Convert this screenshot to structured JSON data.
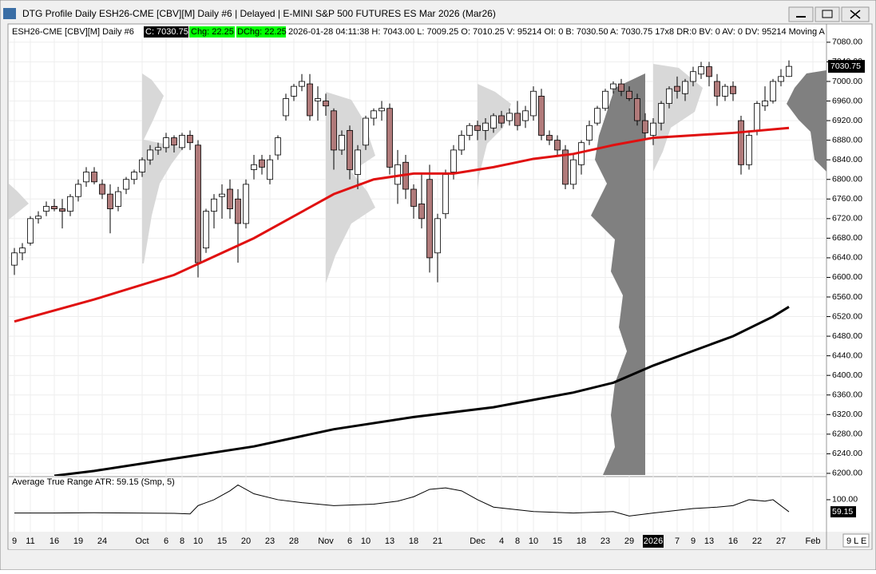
{
  "window": {
    "title": "DTG Profile Daily ESH26-CME [CBV][M]  Daily #6 | Delayed | E-MINI S&P 500 FUTURES ES Mar 2026 (Mar26)"
  },
  "info": {
    "symbol": "ESH26-CME [CBV][M]  Daily #6",
    "close": "C: 7030.75",
    "change": "Chg: 22.25",
    "dchange": "DChg: 22.25",
    "details": "2026-01-28 04:11:38 H: 7043.00 L: 7009.25 O: 7010.25 V: 95214 OI: 0 B: 7030.50 A: 7030.75 17x8 DR:0 BV: 0 AV: 0 DV: 95214 Moving A"
  },
  "corner": "9 L E",
  "chart_data": {
    "type": "candlestick",
    "categories": [
      "9",
      null,
      "11",
      null,
      null,
      "16",
      null,
      null,
      "19",
      null,
      null,
      "24",
      null,
      null,
      null,
      null,
      "Oct",
      null,
      null,
      "6",
      null,
      "8",
      null,
      "10",
      null,
      null,
      "15",
      null,
      null,
      "20",
      null,
      null,
      "23",
      null,
      null,
      "28",
      null,
      null,
      null,
      "Nov",
      null,
      null,
      "6",
      null,
      "10",
      null,
      null,
      "13",
      null,
      null,
      "18",
      null,
      null,
      "21",
      null,
      null,
      null,
      null,
      "Dec",
      null,
      null,
      "4",
      null,
      "8",
      null,
      "10",
      null,
      null,
      "15",
      null,
      null,
      "18",
      null,
      null,
      "23",
      null,
      null,
      "29",
      null,
      null,
      "2026",
      null,
      null,
      "7",
      null,
      "9",
      null,
      "13",
      null,
      null,
      "16",
      null,
      null,
      "22",
      null,
      null,
      "27",
      null,
      null,
      null,
      "Feb"
    ],
    "open": [
      6625,
      6650,
      6670,
      6720,
      6735,
      6745,
      6740,
      6735,
      6765,
      6795,
      6815,
      6790,
      6770,
      6745,
      6780,
      6800,
      6815,
      6840,
      6860,
      6865,
      6885,
      6865,
      6890,
      6870,
      6660,
      6735,
      6765,
      6780,
      6760,
      6710,
      6820,
      6840,
      6800,
      6850,
      6930,
      6970,
      6990,
      6995,
      6960,
      6960,
      6940,
      6860,
      6900,
      6810,
      6870,
      6925,
      6940,
      6945,
      6790,
      6835,
      6780,
      6750,
      6800,
      6650,
      6730,
      6815,
      6860,
      6890,
      6910,
      6900,
      6905,
      6930,
      6920,
      6935,
      6920,
      6930,
      6970,
      6890,
      6880,
      6860,
      6790,
      6830,
      6880,
      6915,
      6945,
      6985,
      6995,
      6980,
      6965,
      6920,
      6890,
      6915,
      6955,
      6990,
      6975,
      7000,
      7015,
      7030,
      7000,
      6970,
      6990,
      6920,
      6830,
      6900,
      6950,
      6960,
      7000,
      7010.25,
      null,
      null,
      null
    ],
    "high": [
      6660,
      6670,
      6725,
      6735,
      6755,
      6760,
      6760,
      6770,
      6800,
      6825,
      6825,
      6800,
      6790,
      6785,
      6805,
      6820,
      6845,
      6870,
      6875,
      6895,
      6890,
      6895,
      6900,
      6880,
      6740,
      6770,
      6790,
      6800,
      6780,
      6800,
      6850,
      6850,
      6850,
      6890,
      6975,
      6995,
      7015,
      7015,
      6990,
      6975,
      6945,
      6900,
      6910,
      6870,
      6930,
      6945,
      6960,
      6955,
      6860,
      6850,
      6790,
      6810,
      6830,
      6730,
      6820,
      6870,
      6900,
      6915,
      6920,
      6925,
      6935,
      6940,
      6945,
      6960,
      6950,
      6990,
      6985,
      6900,
      6890,
      6870,
      6850,
      6880,
      6920,
      6950,
      6985,
      7000,
      7005,
      6990,
      6975,
      6935,
      6925,
      6960,
      6990,
      7010,
      7005,
      7030,
      7040,
      7040,
      7015,
      6995,
      7000,
      6930,
      6900,
      6960,
      6990,
      7005,
      7025,
      7043,
      null,
      null,
      null
    ],
    "low": [
      6605,
      6635,
      6665,
      6710,
      6725,
      6735,
      6700,
      6725,
      6755,
      6785,
      6790,
      6760,
      6690,
      6735,
      6770,
      6790,
      6805,
      6830,
      6850,
      6855,
      6855,
      6860,
      6860,
      6600,
      6650,
      6700,
      6720,
      6720,
      6630,
      6700,
      6800,
      6810,
      6790,
      6840,
      6920,
      6960,
      6980,
      6920,
      6920,
      6930,
      6820,
      6850,
      6800,
      6780,
      6860,
      6910,
      6920,
      6810,
      6750,
      6760,
      6720,
      6700,
      6610,
      6590,
      6720,
      6800,
      6850,
      6880,
      6880,
      6880,
      6895,
      6905,
      6910,
      6900,
      6905,
      6920,
      6880,
      6870,
      6850,
      6780,
      6780,
      6810,
      6870,
      6910,
      6940,
      6975,
      6970,
      6960,
      6910,
      6880,
      6870,
      6900,
      6945,
      6965,
      6960,
      6990,
      7005,
      6990,
      6950,
      6960,
      6960,
      6810,
      6820,
      6890,
      6940,
      6955,
      6990,
      7009.25,
      null,
      null,
      null
    ],
    "close": [
      6650,
      6660,
      6720,
      6725,
      6745,
      6740,
      6735,
      6765,
      6790,
      6815,
      6795,
      6770,
      6740,
      6775,
      6800,
      6815,
      6840,
      6860,
      6865,
      6885,
      6870,
      6890,
      6875,
      6630,
      6735,
      6760,
      6770,
      6740,
      6710,
      6790,
      6830,
      6825,
      6840,
      6885,
      6965,
      6990,
      7000,
      6930,
      6965,
      6950,
      6860,
      6890,
      6820,
      6860,
      6925,
      6940,
      6945,
      6825,
      6830,
      6780,
      6745,
      6720,
      6640,
      6720,
      6810,
      6860,
      6890,
      6910,
      6900,
      6915,
      6930,
      6915,
      6935,
      6910,
      6940,
      6980,
      6890,
      6880,
      6860,
      6790,
      6840,
      6875,
      6910,
      6945,
      6980,
      6995,
      6980,
      6965,
      6920,
      6895,
      6915,
      6955,
      6985,
      6980,
      7000,
      7020,
      7030,
      7010,
      6970,
      6990,
      6975,
      6830,
      6890,
      6955,
      6960,
      7000,
      7010,
      7030.75,
      null,
      null,
      null
    ],
    "up_color": "#ffffff",
    "down_color": "#b07a7a",
    "ylim": [
      6195,
      7088
    ],
    "yticks": [
      {
        "value": 7080,
        "label": "7080.00"
      },
      {
        "value": 7040,
        "label": "7040.00"
      },
      {
        "value": 7000,
        "label": "7000.00"
      },
      {
        "value": 6960,
        "label": "6960.00"
      },
      {
        "value": 6920,
        "label": "6920.00"
      },
      {
        "value": 6880,
        "label": "6880.00"
      },
      {
        "value": 6840,
        "label": "6840.00"
      },
      {
        "value": 6800,
        "label": "6800.00"
      },
      {
        "value": 6760,
        "label": "6760.00"
      },
      {
        "value": 6720,
        "label": "6720.00"
      },
      {
        "value": 6680,
        "label": "6680.00"
      },
      {
        "value": 6640,
        "label": "6640.00"
      },
      {
        "value": 6600,
        "label": "6600.00"
      },
      {
        "value": 6560,
        "label": "6560.00"
      },
      {
        "value": 6520,
        "label": "6520.00"
      },
      {
        "value": 6480,
        "label": "6480.00"
      },
      {
        "value": 6440,
        "label": "6440.00"
      },
      {
        "value": 6400,
        "label": "6400.00"
      },
      {
        "value": 6360,
        "label": "6360.00"
      },
      {
        "value": 6320,
        "label": "6320.00"
      },
      {
        "value": 6280,
        "label": "6280.00"
      },
      {
        "value": 6240,
        "label": "6240.00"
      },
      {
        "value": 6200,
        "label": "6200.00"
      }
    ],
    "overlays": [
      {
        "color": "#e01010",
        "x": [
          0,
          10,
          20,
          30,
          40,
          45,
          50,
          55,
          60,
          65,
          70,
          75,
          80,
          85,
          90,
          97
        ],
        "values": [
          6510,
          6555,
          6605,
          6680,
          6770,
          6800,
          6812,
          6812,
          6825,
          6842,
          6852,
          6870,
          6885,
          6890,
          6895,
          6905
        ]
      },
      {
        "color": "#000000",
        "x": [
          5,
          10,
          20,
          30,
          40,
          50,
          60,
          70,
          75,
          80,
          85,
          90,
          95,
          97
        ],
        "values": [
          6195,
          6205,
          6230,
          6255,
          6290,
          6315,
          6335,
          6365,
          6385,
          6420,
          6450,
          6480,
          6520,
          6540
        ]
      }
    ],
    "atr": {
      "label": "Average True Range  ATR: 59.15  (Smp, 5)",
      "color": "#000000",
      "x": [
        0,
        5,
        10,
        15,
        20,
        22,
        23,
        25,
        27,
        28,
        30,
        33,
        36,
        40,
        45,
        48,
        50,
        52,
        54,
        56,
        58,
        60,
        65,
        70,
        75,
        77,
        80,
        85,
        88,
        90,
        92,
        94,
        95,
        97
      ],
      "values": [
        55,
        55,
        56,
        55,
        54,
        52,
        80,
        100,
        130,
        150,
        120,
        100,
        90,
        80,
        85,
        95,
        110,
        135,
        140,
        130,
        100,
        75,
        60,
        55,
        60,
        45,
        55,
        70,
        75,
        80,
        100,
        95,
        100,
        59.15
      ],
      "ylim": [
        0,
        170
      ],
      "yticks": [
        {
          "value": 100,
          "label": "100.00"
        }
      ]
    }
  }
}
